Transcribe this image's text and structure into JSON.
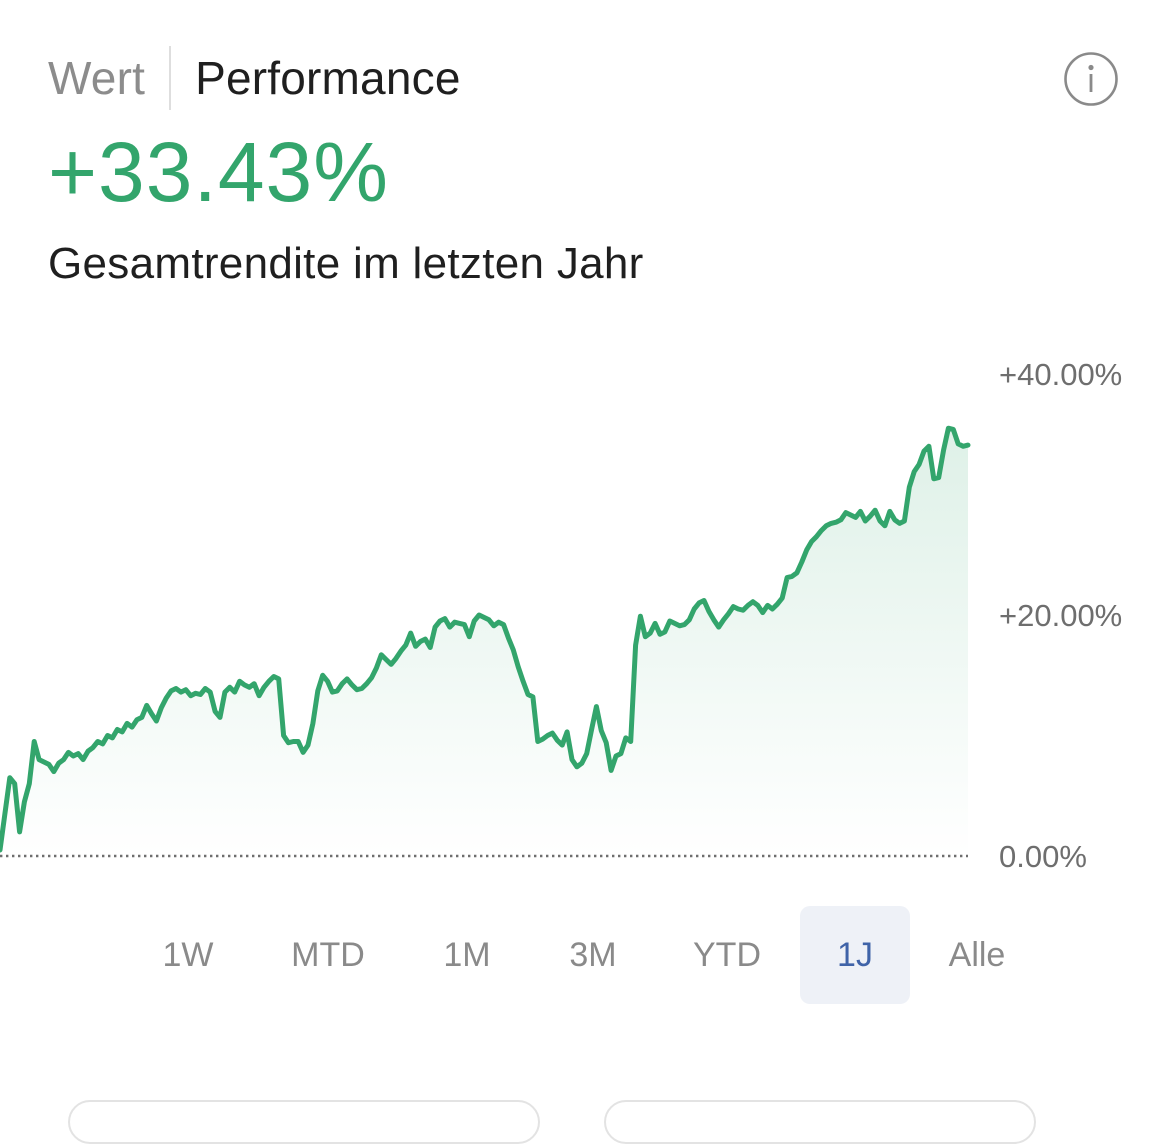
{
  "header": {
    "tabs": [
      {
        "label": "Wert",
        "active": false
      },
      {
        "label": "Performance",
        "active": true
      }
    ],
    "info_icon": "info-circle-icon"
  },
  "summary": {
    "total_return": "+33.43%",
    "caption": "Gesamtrendite im letzten Jahr"
  },
  "colors": {
    "positive": "#33a56c",
    "line": "#33a56c",
    "selected_range_bg": "#eef1f7",
    "selected_range_text": "#3f63a8"
  },
  "chart_data": {
    "type": "area",
    "ylim": [
      0,
      40
    ],
    "y_ticks": [
      {
        "value": 40,
        "label": "+40.00%"
      },
      {
        "value": 20,
        "label": "+20.00%"
      },
      {
        "value": 0,
        "label": "0.00%"
      }
    ],
    "baseline": 0,
    "grid": false,
    "values": [
      0.5,
      3.5,
      6.5,
      6,
      2,
      4.5,
      6,
      9.5,
      8,
      7.8,
      7.6,
      7,
      7.7,
      8,
      8.6,
      8.3,
      8.5,
      8,
      8.7,
      9,
      9.5,
      9.3,
      10,
      9.8,
      10.5,
      10.3,
      11,
      10.7,
      11.3,
      11.5,
      12.5,
      11.8,
      11.2,
      12.3,
      13.1,
      13.7,
      13.9,
      13.6,
      13.8,
      13.3,
      13.5,
      13.4,
      13.9,
      13.6,
      12,
      11.5,
      13.6,
      14,
      13.6,
      14.5,
      14.2,
      14,
      14.3,
      13.3,
      14,
      14.5,
      14.9,
      14.7,
      10,
      9.4,
      9.5,
      9.5,
      8.6,
      9.2,
      11,
      13.7,
      15,
      14.5,
      13.6,
      13.7,
      14.3,
      14.7,
      14.2,
      13.8,
      13.9,
      14.3,
      14.8,
      15.6,
      16.7,
      16.3,
      15.9,
      16.4,
      17,
      17.5,
      18.5,
      17.4,
      17.8,
      18,
      17.3,
      19,
      19.5,
      19.7,
      19,
      19.4,
      19.3,
      19.2,
      18.2,
      19.5,
      20,
      19.8,
      19.6,
      19.1,
      19.4,
      19.2,
      18.1,
      17.1,
      15.7,
      14.5,
      13.4,
      13.2,
      9.5,
      9.7,
      10,
      10.2,
      9.6,
      9.2,
      10.3,
      8,
      7.4,
      7.7,
      8.5,
      10.5,
      12.4,
      10.4,
      9.4,
      7.1,
      8.3,
      8.5,
      9.8,
      9.5,
      17.5,
      19.9,
      18.2,
      18.5,
      19.3,
      18.4,
      18.6,
      19.5,
      19.3,
      19.1,
      19.2,
      19.6,
      20.5,
      21,
      21.2,
      20.3,
      19.6,
      19,
      19.6,
      20.1,
      20.7,
      20.5,
      20.4,
      20.8,
      21.1,
      20.8,
      20.2,
      20.8,
      20.5,
      20.9,
      21.4,
      23.1,
      23.2,
      23.5,
      24.4,
      25.4,
      26.1,
      26.5,
      27,
      27.4,
      27.6,
      27.7,
      27.9,
      28.5,
      28.3,
      28.1,
      28.6,
      27.8,
      28.2,
      28.7,
      27.8,
      27.4,
      28.6,
      27.9,
      27.6,
      27.8,
      30.6,
      31.9,
      32.5,
      33.6,
      34,
      31.3,
      31.4,
      33.7,
      35.5,
      35.4,
      34.2,
      34,
      34.1
    ]
  },
  "range_selector": {
    "options": [
      "1W",
      "MTD",
      "1M",
      "3M",
      "YTD",
      "1J",
      "Alle"
    ],
    "selected": "1J"
  }
}
